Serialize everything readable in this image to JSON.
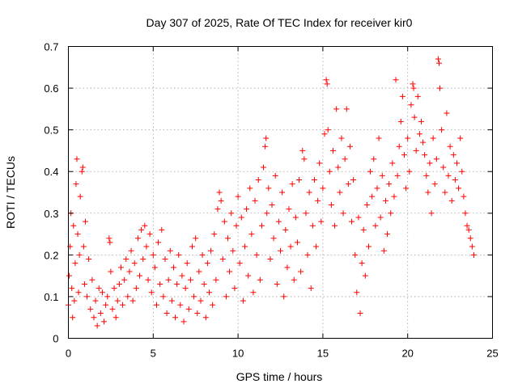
{
  "chart_data": {
    "type": "scatter",
    "title": "Day 307 of 2025, Rate Of TEC Index for receiver kir0",
    "xlabel": "GPS time / hours",
    "ylabel": "ROTI / TECUs",
    "xlim": [
      0,
      25
    ],
    "ylim": [
      0,
      0.7
    ],
    "xticks": [
      "0",
      "5",
      "10",
      "15",
      "20",
      "25"
    ],
    "yticks": [
      "0",
      "0.1",
      "0.2",
      "0.3",
      "0.4",
      "0.5",
      "0.6",
      "0.7"
    ],
    "grid": true,
    "marker": "+",
    "color": "#ff0000",
    "series": [
      {
        "values": [
          [
            0.0,
            0.08
          ],
          [
            0.05,
            0.15
          ],
          [
            0.1,
            0.22
          ],
          [
            0.15,
            0.3
          ],
          [
            0.2,
            0.12
          ],
          [
            0.25,
            0.05
          ],
          [
            0.3,
            0.27
          ],
          [
            0.35,
            0.09
          ],
          [
            0.4,
            0.18
          ],
          [
            0.45,
            0.37
          ],
          [
            0.5,
            0.43
          ],
          [
            0.55,
            0.25
          ],
          [
            0.6,
            0.11
          ],
          [
            0.65,
            0.2
          ],
          [
            0.7,
            0.34
          ],
          [
            0.8,
            0.4
          ],
          [
            0.85,
            0.41
          ],
          [
            0.9,
            0.22
          ],
          [
            0.95,
            0.13
          ],
          [
            1.0,
            0.28
          ],
          [
            1.1,
            0.1
          ],
          [
            1.2,
            0.19
          ],
          [
            1.3,
            0.07
          ],
          [
            1.4,
            0.14
          ],
          [
            1.5,
            0.05
          ],
          [
            1.6,
            0.09
          ],
          [
            1.7,
            0.03
          ],
          [
            1.8,
            0.12
          ],
          [
            1.9,
            0.06
          ],
          [
            2.0,
            0.11
          ],
          [
            2.1,
            0.04
          ],
          [
            2.2,
            0.08
          ],
          [
            2.3,
            0.1
          ],
          [
            2.4,
            0.24
          ],
          [
            2.45,
            0.23
          ],
          [
            2.5,
            0.16
          ],
          [
            2.6,
            0.07
          ],
          [
            2.7,
            0.12
          ],
          [
            2.8,
            0.05
          ],
          [
            2.9,
            0.09
          ],
          [
            3.0,
            0.13
          ],
          [
            3.1,
            0.17
          ],
          [
            3.2,
            0.08
          ],
          [
            3.3,
            0.14
          ],
          [
            3.4,
            0.19
          ],
          [
            3.5,
            0.1
          ],
          [
            3.6,
            0.16
          ],
          [
            3.7,
            0.21
          ],
          [
            3.8,
            0.09
          ],
          [
            3.9,
            0.18
          ],
          [
            4.0,
            0.12
          ],
          [
            4.1,
            0.24
          ],
          [
            4.2,
            0.15
          ],
          [
            4.3,
            0.26
          ],
          [
            4.4,
            0.19
          ],
          [
            4.5,
            0.27
          ],
          [
            4.6,
            0.22
          ],
          [
            4.7,
            0.14
          ],
          [
            4.8,
            0.25
          ],
          [
            4.9,
            0.11
          ],
          [
            5.0,
            0.2
          ],
          [
            5.1,
            0.17
          ],
          [
            5.2,
            0.08
          ],
          [
            5.3,
            0.23
          ],
          [
            5.4,
            0.13
          ],
          [
            5.5,
            0.26
          ],
          [
            5.6,
            0.1
          ],
          [
            5.7,
            0.19
          ],
          [
            5.8,
            0.06
          ],
          [
            5.9,
            0.14
          ],
          [
            6.0,
            0.21
          ],
          [
            6.1,
            0.09
          ],
          [
            6.2,
            0.17
          ],
          [
            6.3,
            0.05
          ],
          [
            6.4,
            0.13
          ],
          [
            6.5,
            0.2
          ],
          [
            6.6,
            0.08
          ],
          [
            6.7,
            0.15
          ],
          [
            6.8,
            0.04
          ],
          [
            6.9,
            0.12
          ],
          [
            7.0,
            0.18
          ],
          [
            7.1,
            0.07
          ],
          [
            7.2,
            0.14
          ],
          [
            7.3,
            0.22
          ],
          [
            7.4,
            0.1
          ],
          [
            7.5,
            0.24
          ],
          [
            7.6,
            0.06
          ],
          [
            7.7,
            0.16
          ],
          [
            7.8,
            0.09
          ],
          [
            7.9,
            0.2
          ],
          [
            8.0,
            0.13
          ],
          [
            8.1,
            0.05
          ],
          [
            8.2,
            0.18
          ],
          [
            8.3,
            0.11
          ],
          [
            8.4,
            0.21
          ],
          [
            8.5,
            0.08
          ],
          [
            8.6,
            0.25
          ],
          [
            8.7,
            0.14
          ],
          [
            8.8,
            0.31
          ],
          [
            8.9,
            0.35
          ],
          [
            9.0,
            0.33
          ],
          [
            9.1,
            0.19
          ],
          [
            9.2,
            0.28
          ],
          [
            9.3,
            0.1
          ],
          [
            9.4,
            0.24
          ],
          [
            9.5,
            0.16
          ],
          [
            9.6,
            0.3
          ],
          [
            9.7,
            0.21
          ],
          [
            9.8,
            0.12
          ],
          [
            9.9,
            0.27
          ],
          [
            10.0,
            0.34
          ],
          [
            10.1,
            0.18
          ],
          [
            10.2,
            0.29
          ],
          [
            10.3,
            0.09
          ],
          [
            10.4,
            0.22
          ],
          [
            10.5,
            0.31
          ],
          [
            10.6,
            0.15
          ],
          [
            10.7,
            0.36
          ],
          [
            10.8,
            0.25
          ],
          [
            10.9,
            0.11
          ],
          [
            11.0,
            0.33
          ],
          [
            11.1,
            0.2
          ],
          [
            11.2,
            0.38
          ],
          [
            11.3,
            0.14
          ],
          [
            11.4,
            0.27
          ],
          [
            11.5,
            0.41
          ],
          [
            11.6,
            0.46
          ],
          [
            11.65,
            0.48
          ],
          [
            11.7,
            0.3
          ],
          [
            11.8,
            0.36
          ],
          [
            11.9,
            0.19
          ],
          [
            12.0,
            0.32
          ],
          [
            12.1,
            0.24
          ],
          [
            12.2,
            0.39
          ],
          [
            12.3,
            0.13
          ],
          [
            12.4,
            0.28
          ],
          [
            12.5,
            0.21
          ],
          [
            12.6,
            0.35
          ],
          [
            12.7,
            0.1
          ],
          [
            12.8,
            0.26
          ],
          [
            12.9,
            0.17
          ],
          [
            13.0,
            0.31
          ],
          [
            13.1,
            0.22
          ],
          [
            13.2,
            0.37
          ],
          [
            13.3,
            0.14
          ],
          [
            13.4,
            0.29
          ],
          [
            13.5,
            0.23
          ],
          [
            13.6,
            0.38
          ],
          [
            13.7,
            0.16
          ],
          [
            13.8,
            0.45
          ],
          [
            13.9,
            0.43
          ],
          [
            14.0,
            0.3
          ],
          [
            14.1,
            0.2
          ],
          [
            14.2,
            0.35
          ],
          [
            14.3,
            0.12
          ],
          [
            14.4,
            0.27
          ],
          [
            14.5,
            0.38
          ],
          [
            14.6,
            0.22
          ],
          [
            14.7,
            0.33
          ],
          [
            14.8,
            0.42
          ],
          [
            14.9,
            0.28
          ],
          [
            15.0,
            0.36
          ],
          [
            15.1,
            0.49
          ],
          [
            15.2,
            0.62
          ],
          [
            15.25,
            0.61
          ],
          [
            15.3,
            0.5
          ],
          [
            15.4,
            0.4
          ],
          [
            15.5,
            0.32
          ],
          [
            15.6,
            0.45
          ],
          [
            15.7,
            0.27
          ],
          [
            15.8,
            0.55
          ],
          [
            15.9,
            0.41
          ],
          [
            16.0,
            0.35
          ],
          [
            16.1,
            0.48
          ],
          [
            16.2,
            0.3
          ],
          [
            16.3,
            0.43
          ],
          [
            16.4,
            0.55
          ],
          [
            16.5,
            0.37
          ],
          [
            16.6,
            0.46
          ],
          [
            16.7,
            0.28
          ],
          [
            16.8,
            0.38
          ],
          [
            16.9,
            0.2
          ],
          [
            17.0,
            0.11
          ],
          [
            17.1,
            0.29
          ],
          [
            17.2,
            0.06
          ],
          [
            17.3,
            0.18
          ],
          [
            17.4,
            0.26
          ],
          [
            17.5,
            0.15
          ],
          [
            17.6,
            0.32
          ],
          [
            17.7,
            0.22
          ],
          [
            17.8,
            0.4
          ],
          [
            17.9,
            0.34
          ],
          [
            18.0,
            0.43
          ],
          [
            18.1,
            0.27
          ],
          [
            18.2,
            0.36
          ],
          [
            18.3,
            0.48
          ],
          [
            18.4,
            0.29
          ],
          [
            18.5,
            0.39
          ],
          [
            18.6,
            0.21
          ],
          [
            18.7,
            0.33
          ],
          [
            18.8,
            0.25
          ],
          [
            18.9,
            0.37
          ],
          [
            19.0,
            0.3
          ],
          [
            19.1,
            0.42
          ],
          [
            19.2,
            0.34
          ],
          [
            19.3,
            0.62
          ],
          [
            19.4,
            0.39
          ],
          [
            19.5,
            0.46
          ],
          [
            19.6,
            0.52
          ],
          [
            19.7,
            0.58
          ],
          [
            19.8,
            0.44
          ],
          [
            19.9,
            0.36
          ],
          [
            20.0,
            0.48
          ],
          [
            20.1,
            0.4
          ],
          [
            20.2,
            0.56
          ],
          [
            20.3,
            0.61
          ],
          [
            20.35,
            0.6
          ],
          [
            20.4,
            0.53
          ],
          [
            20.5,
            0.45
          ],
          [
            20.6,
            0.58
          ],
          [
            20.7,
            0.49
          ],
          [
            20.8,
            0.52
          ],
          [
            20.9,
            0.47
          ],
          [
            21.0,
            0.44
          ],
          [
            21.1,
            0.39
          ],
          [
            21.2,
            0.35
          ],
          [
            21.3,
            0.42
          ],
          [
            21.4,
            0.3
          ],
          [
            21.5,
            0.48
          ],
          [
            21.6,
            0.37
          ],
          [
            21.7,
            0.43
          ],
          [
            21.8,
            0.67
          ],
          [
            21.85,
            0.66
          ],
          [
            21.9,
            0.6
          ],
          [
            22.0,
            0.5
          ],
          [
            22.1,
            0.41
          ],
          [
            22.2,
            0.35
          ],
          [
            22.3,
            0.54
          ],
          [
            22.4,
            0.39
          ],
          [
            22.5,
            0.46
          ],
          [
            22.6,
            0.33
          ],
          [
            22.7,
            0.44
          ],
          [
            22.8,
            0.38
          ],
          [
            22.9,
            0.42
          ],
          [
            23.0,
            0.36
          ],
          [
            23.1,
            0.48
          ],
          [
            23.2,
            0.4
          ],
          [
            23.3,
            0.34
          ],
          [
            23.4,
            0.3
          ],
          [
            23.5,
            0.27
          ],
          [
            23.6,
            0.26
          ],
          [
            23.7,
            0.24
          ],
          [
            23.8,
            0.22
          ],
          [
            23.9,
            0.2
          ]
        ]
      }
    ]
  }
}
